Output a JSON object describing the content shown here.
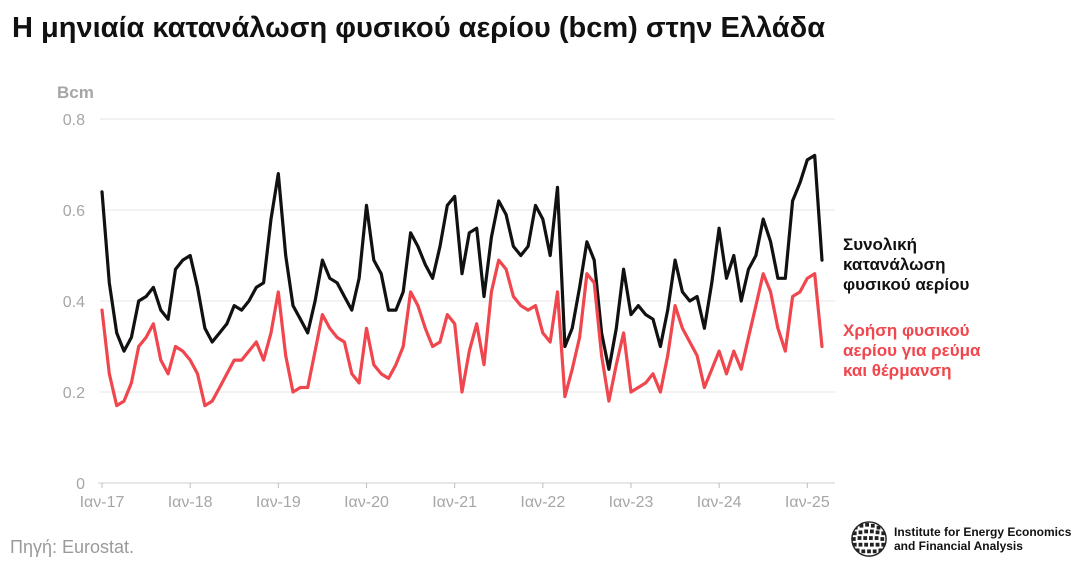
{
  "title": "Η μηνιαία κατανάλωση φυσικού αερίου (bcm) στην Ελλάδα",
  "source": "Πηγή: Eurostat.",
  "logo": {
    "line1": "Institute for Energy Economics",
    "line2": "and Financial Analysis"
  },
  "colors": {
    "total": "#111111",
    "power": "#f0464d",
    "grid": "#e6e6e6",
    "axis_text": "#a6a6a6"
  },
  "legend": {
    "total_lines": [
      "Συνολική",
      "κατανάλωση",
      "φυσικού αερίου"
    ],
    "power_lines": [
      "Χρήση φυσικού",
      "αερίου για ρεύμα",
      "και θέρμανση"
    ]
  },
  "chart_data": {
    "type": "line",
    "ylabel": "Bcm",
    "ylim": [
      0,
      0.8
    ],
    "yticks": [
      0,
      0.2,
      0.4,
      0.6,
      0.8
    ],
    "ytick_labels": [
      "0",
      "0.2",
      "0.4",
      "0.6",
      "0.8"
    ],
    "x_start": "2017-01",
    "x_end": "2025-01",
    "xtick_labels": [
      "Ιαν-17",
      "Ιαν-18",
      "Ιαν-19",
      "Ιαν-20",
      "Ιαν-21",
      "Ιαν-22",
      "Ιαν-23",
      "Ιαν-24",
      "Ιαν-25"
    ],
    "grid": true,
    "legend_placement": "right, at line ends",
    "series": [
      {
        "name": "Συνολική κατανάλωση φυσικού αερίου",
        "color": "#111111",
        "values": [
          0.64,
          0.44,
          0.33,
          0.29,
          0.32,
          0.4,
          0.41,
          0.43,
          0.38,
          0.36,
          0.47,
          0.49,
          0.5,
          0.43,
          0.34,
          0.31,
          0.33,
          0.35,
          0.39,
          0.38,
          0.4,
          0.43,
          0.44,
          0.58,
          0.68,
          0.5,
          0.39,
          0.36,
          0.33,
          0.4,
          0.49,
          0.45,
          0.44,
          0.41,
          0.38,
          0.45,
          0.61,
          0.49,
          0.46,
          0.38,
          0.38,
          0.42,
          0.55,
          0.52,
          0.48,
          0.45,
          0.52,
          0.61,
          0.63,
          0.46,
          0.55,
          0.56,
          0.41,
          0.54,
          0.62,
          0.59,
          0.52,
          0.5,
          0.52,
          0.61,
          0.58,
          0.5,
          0.65,
          0.3,
          0.34,
          0.43,
          0.53,
          0.49,
          0.33,
          0.25,
          0.34,
          0.47,
          0.37,
          0.39,
          0.37,
          0.36,
          0.3,
          0.38,
          0.49,
          0.42,
          0.4,
          0.41,
          0.34,
          0.44,
          0.56,
          0.45,
          0.5,
          0.4,
          0.47,
          0.5,
          0.58,
          0.53,
          0.45,
          0.45,
          0.62,
          0.66,
          0.71,
          0.72,
          0.49
        ]
      },
      {
        "name": "Χρήση φυσικού αερίου για ρεύμα και θέρμανση",
        "color": "#f0464d",
        "values": [
          0.38,
          0.24,
          0.17,
          0.18,
          0.22,
          0.3,
          0.32,
          0.35,
          0.27,
          0.24,
          0.3,
          0.29,
          0.27,
          0.24,
          0.17,
          0.18,
          0.21,
          0.24,
          0.27,
          0.27,
          0.29,
          0.31,
          0.27,
          0.33,
          0.42,
          0.28,
          0.2,
          0.21,
          0.21,
          0.29,
          0.37,
          0.34,
          0.32,
          0.31,
          0.24,
          0.22,
          0.34,
          0.26,
          0.24,
          0.23,
          0.26,
          0.3,
          0.42,
          0.39,
          0.34,
          0.3,
          0.31,
          0.37,
          0.35,
          0.2,
          0.29,
          0.35,
          0.26,
          0.42,
          0.49,
          0.47,
          0.41,
          0.39,
          0.38,
          0.39,
          0.33,
          0.31,
          0.42,
          0.19,
          0.25,
          0.32,
          0.46,
          0.44,
          0.28,
          0.18,
          0.26,
          0.33,
          0.2,
          0.21,
          0.22,
          0.24,
          0.2,
          0.28,
          0.39,
          0.34,
          0.31,
          0.28,
          0.21,
          0.25,
          0.29,
          0.24,
          0.29,
          0.25,
          0.32,
          0.39,
          0.46,
          0.42,
          0.34,
          0.29,
          0.41,
          0.42,
          0.45,
          0.46,
          0.3
        ]
      }
    ]
  }
}
